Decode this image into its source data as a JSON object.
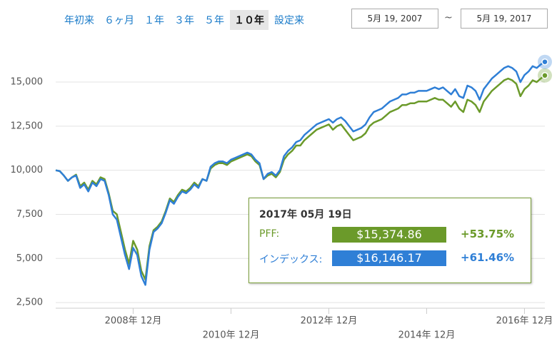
{
  "buttons": [
    "年初来",
    "６ヶ月",
    "１年",
    "３年",
    "５年",
    "１０年",
    "設定来"
  ],
  "selected_button": 5,
  "date_from": "5月 19, 2007",
  "date_sep": "~",
  "date_to": "5月 19, 2017",
  "tooltip": {
    "date": "2017年 05月 19日",
    "rows": [
      {
        "name": "PFF:",
        "value": "$15,374.86",
        "change": "+53.75%",
        "color": "#6b9a2a"
      },
      {
        "name": "インデックス:",
        "value": "$16,146.17",
        "change": "+61.46%",
        "color": "#2f7fd6"
      }
    ]
  },
  "chart_data": {
    "type": "line",
    "x": [
      "2007-05",
      "2007-06",
      "2007-07",
      "2007-08",
      "2007-09",
      "2007-10",
      "2007-11",
      "2007-12",
      "2008-01",
      "2008-02",
      "2008-03",
      "2008-04",
      "2008-05",
      "2008-06",
      "2008-07",
      "2008-08",
      "2008-09",
      "2008-10",
      "2008-11",
      "2008-12",
      "2009-01",
      "2009-02",
      "2009-03",
      "2009-04",
      "2009-05",
      "2009-06",
      "2009-07",
      "2009-08",
      "2009-09",
      "2009-10",
      "2009-11",
      "2009-12",
      "2010-01",
      "2010-02",
      "2010-03",
      "2010-04",
      "2010-05",
      "2010-06",
      "2010-07",
      "2010-08",
      "2010-09",
      "2010-10",
      "2010-11",
      "2010-12",
      "2011-01",
      "2011-02",
      "2011-03",
      "2011-04",
      "2011-05",
      "2011-06",
      "2011-07",
      "2011-08",
      "2011-09",
      "2011-10",
      "2011-11",
      "2011-12",
      "2012-01",
      "2012-02",
      "2012-03",
      "2012-04",
      "2012-05",
      "2012-06",
      "2012-07",
      "2012-08",
      "2012-09",
      "2012-10",
      "2012-11",
      "2012-12",
      "2013-01",
      "2013-02",
      "2013-03",
      "2013-04",
      "2013-05",
      "2013-06",
      "2013-07",
      "2013-08",
      "2013-09",
      "2013-10",
      "2013-11",
      "2013-12",
      "2014-01",
      "2014-02",
      "2014-03",
      "2014-04",
      "2014-05",
      "2014-06",
      "2014-07",
      "2014-08",
      "2014-09",
      "2014-10",
      "2014-11",
      "2014-12",
      "2015-01",
      "2015-02",
      "2015-03",
      "2015-04",
      "2015-05",
      "2015-06",
      "2015-07",
      "2015-08",
      "2015-09",
      "2015-10",
      "2015-11",
      "2015-12",
      "2016-01",
      "2016-02",
      "2016-03",
      "2016-04",
      "2016-05",
      "2016-06",
      "2016-07",
      "2016-08",
      "2016-09",
      "2016-10",
      "2016-11",
      "2016-12",
      "2017-01",
      "2017-02",
      "2017-03",
      "2017-04",
      "2017-05"
    ],
    "series": [
      {
        "color": "#6b9a2a",
        "values": [
          10000,
          9950,
          9700,
          9400,
          9600,
          9750,
          9100,
          9300,
          8900,
          9400,
          9200,
          9600,
          9500,
          8700,
          7700,
          7500,
          6500,
          5500,
          4700,
          6000,
          5500,
          4300,
          3800,
          5700,
          6600,
          6800,
          7100,
          7700,
          8400,
          8200,
          8600,
          8900,
          8800,
          9000,
          9300,
          9100,
          9500,
          9400,
          10100,
          10300,
          10400,
          10400,
          10300,
          10500,
          10600,
          10700,
          10800,
          10900,
          10800,
          10500,
          10300,
          9500,
          9700,
          9800,
          9600,
          9900,
          10600,
          10900,
          11100,
          11400,
          11400,
          11700,
          11900,
          12100,
          12300,
          12400,
          12500,
          12600,
          12300,
          12500,
          12600,
          12300,
          12000,
          11700,
          11800,
          11900,
          12100,
          12500,
          12700,
          12800,
          12900,
          13100,
          13300,
          13400,
          13500,
          13700,
          13700,
          13800,
          13800,
          13900,
          13900,
          13900,
          14000,
          14100,
          14000,
          14000,
          13800,
          13600,
          13900,
          13500,
          13300,
          14000,
          13900,
          13700,
          13300,
          13900,
          14200,
          14500,
          14700,
          14900,
          15100,
          15200,
          15100,
          14900,
          14200,
          14600,
          14800,
          15100,
          15000,
          15200,
          15375
        ]
      },
      {
        "color": "#2f7fd6",
        "values": [
          10000,
          9950,
          9700,
          9400,
          9600,
          9700,
          9000,
          9200,
          8800,
          9300,
          9100,
          9500,
          9400,
          8600,
          7500,
          7200,
          6200,
          5200,
          4400,
          5600,
          5200,
          4000,
          3500,
          5500,
          6500,
          6700,
          7000,
          7600,
          8300,
          8100,
          8500,
          8800,
          8700,
          8900,
          9200,
          9000,
          9500,
          9400,
          10200,
          10400,
          10500,
          10500,
          10400,
          10600,
          10700,
          10800,
          10900,
          11000,
          10900,
          10600,
          10400,
          9500,
          9800,
          9900,
          9700,
          10000,
          10800,
          11100,
          11300,
          11600,
          11700,
          12000,
          12200,
          12400,
          12600,
          12700,
          12800,
          12900,
          12700,
          12900,
          13000,
          12800,
          12500,
          12200,
          12300,
          12400,
          12600,
          13000,
          13300,
          13400,
          13500,
          13700,
          13900,
          14000,
          14100,
          14300,
          14300,
          14400,
          14400,
          14500,
          14500,
          14500,
          14600,
          14700,
          14600,
          14700,
          14500,
          14300,
          14600,
          14200,
          14100,
          14800,
          14700,
          14500,
          14000,
          14600,
          14900,
          15200,
          15400,
          15600,
          15800,
          15900,
          15800,
          15600,
          15000,
          15400,
          15600,
          15900,
          15800,
          16000,
          16146
        ]
      }
    ],
    "xlim": [
      "2007-05",
      "2017-05"
    ],
    "xticks": [
      {
        "value": "2008-12",
        "label": "2008年 12月"
      },
      {
        "value": "2010-12",
        "label": "2010年 12月"
      },
      {
        "value": "2012-12",
        "label": "2012年 12月"
      },
      {
        "value": "2014-12",
        "label": "2014年 12月"
      },
      {
        "value": "2016-12",
        "label": "2016年 12月"
      }
    ],
    "ylim": [
      2180,
      16620
    ],
    "yticks": [
      {
        "value": 2500,
        "label": "2,500"
      },
      {
        "value": 5000,
        "label": "5,000"
      },
      {
        "value": 7500,
        "label": "7,500"
      },
      {
        "value": 10000,
        "label": "10,000"
      },
      {
        "value": 12500,
        "label": "12,500"
      },
      {
        "value": 15000,
        "label": "15,000"
      }
    ],
    "grid": true
  }
}
